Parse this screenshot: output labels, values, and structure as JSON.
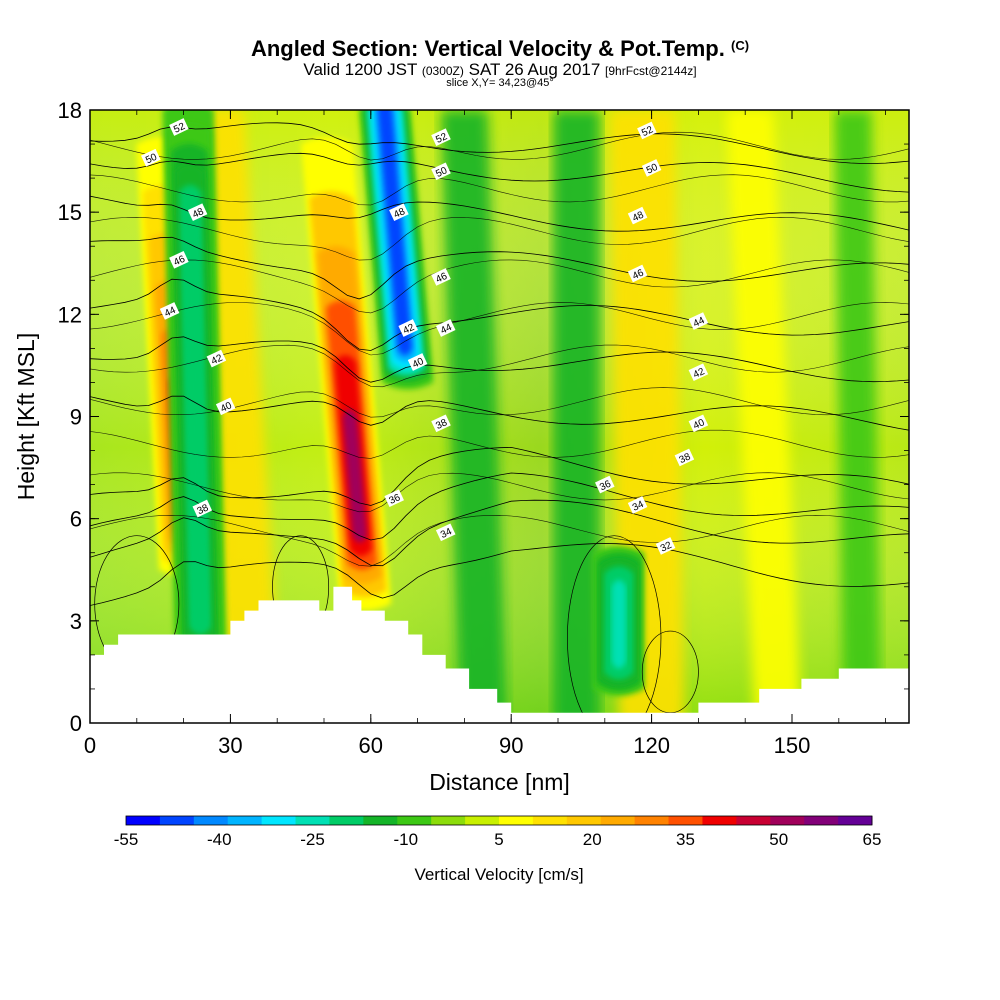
{
  "header": {
    "title": "Angled Section: Vertical Velocity & Pot.Temp.",
    "title_unit": "(C)",
    "valid_prefix": "Valid 1200 JST",
    "valid_utc": "(0300Z)",
    "valid_date": "SAT 26 Aug 2017",
    "forecast": "[9hrFcst@2144z]",
    "slice": "slice X,Y= 34,23@45°"
  },
  "chart_data": {
    "type": "heatmap",
    "xlabel": "Distance [nm]",
    "ylabel": "Height [Kft MSL]",
    "xlim": [
      0,
      175
    ],
    "ylim": [
      0,
      18
    ],
    "x_ticks": [
      0,
      30,
      60,
      90,
      120,
      150
    ],
    "y_ticks": [
      0,
      3,
      6,
      9,
      12,
      15,
      18
    ],
    "colorbar": {
      "title": "Vertical Velocity [cm/s]",
      "tick_labels": [
        "-55",
        "-40",
        "-25",
        "-10",
        "5",
        "20",
        "35",
        "50",
        "65"
      ],
      "tick_values": [
        -55,
        -40,
        -25,
        -10,
        5,
        20,
        35,
        50,
        65
      ],
      "colors": [
        "#0000ff",
        "#0044ff",
        "#0088ff",
        "#00b4ff",
        "#00e6ff",
        "#00e0b4",
        "#00cc66",
        "#14b428",
        "#3cc814",
        "#8cdc0a",
        "#c8f000",
        "#ffff00",
        "#ffe100",
        "#ffc800",
        "#ffaa00",
        "#ff8200",
        "#ff5000",
        "#f00000",
        "#c80032",
        "#a0005a",
        "#820078",
        "#640096"
      ]
    },
    "velocity_features": [
      {
        "kind": "updraft",
        "x_bottom": 61,
        "x_top": 50,
        "peak_cm_s": 50
      },
      {
        "kind": "updraft",
        "x_bottom": 22,
        "x_top": 15,
        "peak_cm_s": 35
      },
      {
        "kind": "downdraft",
        "x_bottom": 74,
        "x_top": 63,
        "peak_cm_s": -45
      },
      {
        "kind": "downdraft",
        "x_bottom": 24,
        "x_top": 21,
        "peak_cm_s": -20
      },
      {
        "kind": "downdraft",
        "x_bottom": 113,
        "x_top": 113,
        "peak_cm_s": -25
      }
    ],
    "theta_contours": [
      {
        "label": "52",
        "height_kft": 17.2
      },
      {
        "label": "50",
        "height_kft": 16.4
      },
      {
        "label": "48",
        "height_kft": 15.0
      },
      {
        "label": "46",
        "height_kft": 13.6
      },
      {
        "label": "44",
        "height_kft": 12.1
      },
      {
        "label": "42",
        "height_kft": 10.8
      },
      {
        "label": "40",
        "height_kft": 9.3
      },
      {
        "label": "38",
        "height_kft": 7.8
      },
      {
        "label": "36",
        "height_kft": 7.0
      },
      {
        "label": "34",
        "height_kft": 6.3
      },
      {
        "label": "32",
        "height_kft": 5.2
      }
    ],
    "contour_labels": [
      {
        "t": "52",
        "x": 19,
        "y": 17.5
      },
      {
        "t": "50",
        "x": 13,
        "y": 16.6
      },
      {
        "t": "48",
        "x": 23,
        "y": 15.0
      },
      {
        "t": "46",
        "x": 19,
        "y": 13.6
      },
      {
        "t": "44",
        "x": 17,
        "y": 12.1
      },
      {
        "t": "42",
        "x": 27,
        "y": 10.7
      },
      {
        "t": "40",
        "x": 29,
        "y": 9.3
      },
      {
        "t": "38",
        "x": 24,
        "y": 6.3
      },
      {
        "t": "52",
        "x": 75,
        "y": 17.2
      },
      {
        "t": "50",
        "x": 75,
        "y": 16.2
      },
      {
        "t": "48",
        "x": 66,
        "y": 15.0
      },
      {
        "t": "46",
        "x": 75,
        "y": 13.1
      },
      {
        "t": "44",
        "x": 76,
        "y": 11.6
      },
      {
        "t": "42",
        "x": 68,
        "y": 11.6
      },
      {
        "t": "40",
        "x": 70,
        "y": 10.6
      },
      {
        "t": "38",
        "x": 75,
        "y": 8.8
      },
      {
        "t": "36",
        "x": 65,
        "y": 6.6
      },
      {
        "t": "34",
        "x": 76,
        "y": 5.6
      },
      {
        "t": "52",
        "x": 119,
        "y": 17.4
      },
      {
        "t": "50",
        "x": 120,
        "y": 16.3
      },
      {
        "t": "48",
        "x": 117,
        "y": 14.9
      },
      {
        "t": "46",
        "x": 117,
        "y": 13.2
      },
      {
        "t": "44",
        "x": 130,
        "y": 11.8
      },
      {
        "t": "42",
        "x": 130,
        "y": 10.3
      },
      {
        "t": "40",
        "x": 130,
        "y": 8.8
      },
      {
        "t": "38",
        "x": 127,
        "y": 7.8
      },
      {
        "t": "36",
        "x": 110,
        "y": 7.0
      },
      {
        "t": "34",
        "x": 117,
        "y": 6.4
      },
      {
        "t": "32",
        "x": 123,
        "y": 5.2
      }
    ],
    "terrain_height_kft": [
      [
        0,
        2.0
      ],
      [
        3,
        2.0
      ],
      [
        3,
        2.3
      ],
      [
        6,
        2.3
      ],
      [
        6,
        2.6
      ],
      [
        30,
        2.6
      ],
      [
        30,
        3.0
      ],
      [
        33,
        3.0
      ],
      [
        33,
        3.3
      ],
      [
        36,
        3.3
      ],
      [
        36,
        3.6
      ],
      [
        49,
        3.6
      ],
      [
        49,
        3.3
      ],
      [
        52,
        3.3
      ],
      [
        52,
        4.0
      ],
      [
        56,
        4.0
      ],
      [
        56,
        3.6
      ],
      [
        58,
        3.6
      ],
      [
        58,
        3.3
      ],
      [
        63,
        3.3
      ],
      [
        63,
        3.0
      ],
      [
        68,
        3.0
      ],
      [
        68,
        2.6
      ],
      [
        71,
        2.6
      ],
      [
        71,
        2.0
      ],
      [
        76,
        2.0
      ],
      [
        76,
        1.6
      ],
      [
        81,
        1.6
      ],
      [
        81,
        1.0
      ],
      [
        87,
        1.0
      ],
      [
        87,
        0.6
      ],
      [
        90,
        0.6
      ],
      [
        90,
        0.3
      ],
      [
        130,
        0.3
      ],
      [
        130,
        0.6
      ],
      [
        143,
        0.6
      ],
      [
        143,
        1.0
      ],
      [
        152,
        1.0
      ],
      [
        152,
        1.3
      ],
      [
        160,
        1.3
      ],
      [
        160,
        1.6
      ],
      [
        175,
        1.6
      ]
    ]
  }
}
